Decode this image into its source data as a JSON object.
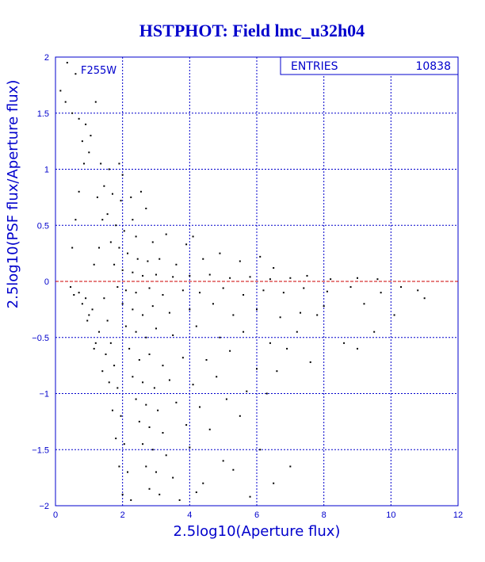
{
  "chart_data": {
    "type": "scatter",
    "title": "HSTPHOT: Field lmc_u32h04",
    "xlabel": "2.5log10(Aperture flux)",
    "ylabel": "2.5log10(PSF flux/Aperture flux)",
    "xlim": [
      0,
      12
    ],
    "ylim": [
      -2,
      2
    ],
    "x_ticks": [
      "0",
      "2",
      "4",
      "6",
      "8",
      "10",
      "12"
    ],
    "y_ticks": [
      "-2",
      "-1.5",
      "-1",
      "-0.5",
      "0",
      "0.5",
      "1",
      "1.5",
      "2"
    ],
    "grid": true,
    "filter_label": "F255W",
    "stats_box": {
      "label": "ENTRIES",
      "value": "10838"
    },
    "reference_line": {
      "y": 0,
      "color": "#cc0000"
    },
    "colors": {
      "axis": "#0000cc",
      "points": "#000000",
      "reference": "#cc0000"
    },
    "series": [
      {
        "values": [
          [
            0.35,
            1.95
          ],
          [
            0.6,
            1.85
          ],
          [
            0.15,
            1.7
          ],
          [
            0.3,
            1.6
          ],
          [
            0.5,
            1.5
          ],
          [
            0.7,
            1.45
          ],
          [
            0.9,
            1.4
          ],
          [
            1.2,
            1.6
          ],
          [
            0.8,
            1.25
          ],
          [
            1.05,
            1.3
          ],
          [
            1.35,
            1.05
          ],
          [
            1.6,
            1.0
          ],
          [
            1.9,
            1.05
          ],
          [
            2.0,
            0.95
          ],
          [
            1.45,
            0.85
          ],
          [
            1.7,
            0.78
          ],
          [
            1.95,
            0.72
          ],
          [
            2.25,
            0.75
          ],
          [
            2.55,
            0.8
          ],
          [
            2.7,
            0.65
          ],
          [
            2.3,
            0.55
          ],
          [
            1.55,
            0.6
          ],
          [
            1.8,
            0.5
          ],
          [
            2.05,
            0.45
          ],
          [
            2.4,
            0.4
          ],
          [
            2.9,
            0.35
          ],
          [
            3.3,
            0.42
          ],
          [
            3.9,
            0.33
          ],
          [
            4.1,
            0.4
          ],
          [
            1.65,
            0.35
          ],
          [
            1.9,
            0.3
          ],
          [
            2.15,
            0.25
          ],
          [
            2.45,
            0.2
          ],
          [
            2.75,
            0.18
          ],
          [
            3.1,
            0.2
          ],
          [
            3.6,
            0.15
          ],
          [
            4.4,
            0.2
          ],
          [
            4.9,
            0.25
          ],
          [
            5.5,
            0.18
          ],
          [
            6.1,
            0.22
          ],
          [
            6.5,
            0.12
          ],
          [
            1.75,
            0.15
          ],
          [
            2.0,
            0.1
          ],
          [
            2.3,
            0.08
          ],
          [
            2.6,
            0.05
          ],
          [
            3.0,
            0.06
          ],
          [
            3.5,
            0.04
          ],
          [
            4.0,
            0.05
          ],
          [
            4.6,
            0.06
          ],
          [
            5.2,
            0.03
          ],
          [
            5.8,
            0.04
          ],
          [
            6.4,
            0.02
          ],
          [
            7.0,
            0.03
          ],
          [
            7.5,
            0.05
          ],
          [
            8.2,
            0.02
          ],
          [
            9.0,
            0.03
          ],
          [
            9.6,
            0.02
          ],
          [
            1.85,
            -0.05
          ],
          [
            2.1,
            -0.08
          ],
          [
            2.4,
            -0.1
          ],
          [
            2.8,
            -0.06
          ],
          [
            3.2,
            -0.12
          ],
          [
            3.8,
            -0.08
          ],
          [
            4.3,
            -0.1
          ],
          [
            5.0,
            -0.06
          ],
          [
            5.6,
            -0.12
          ],
          [
            6.2,
            -0.08
          ],
          [
            6.8,
            -0.1
          ],
          [
            7.4,
            -0.06
          ],
          [
            8.1,
            -0.09
          ],
          [
            8.8,
            -0.05
          ],
          [
            10.3,
            -0.05
          ],
          [
            10.8,
            -0.08
          ],
          [
            2.0,
            -0.2
          ],
          [
            2.3,
            -0.25
          ],
          [
            2.6,
            -0.3
          ],
          [
            2.9,
            -0.22
          ],
          [
            3.4,
            -0.28
          ],
          [
            4.0,
            -0.25
          ],
          [
            4.7,
            -0.2
          ],
          [
            5.3,
            -0.3
          ],
          [
            6.0,
            -0.25
          ],
          [
            6.7,
            -0.32
          ],
          [
            7.3,
            -0.28
          ],
          [
            8.0,
            -0.22
          ],
          [
            9.2,
            -0.2
          ],
          [
            9.7,
            -0.1
          ],
          [
            2.1,
            -0.4
          ],
          [
            2.4,
            -0.45
          ],
          [
            2.7,
            -0.5
          ],
          [
            3.0,
            -0.42
          ],
          [
            3.5,
            -0.48
          ],
          [
            4.2,
            -0.4
          ],
          [
            4.9,
            -0.5
          ],
          [
            5.6,
            -0.45
          ],
          [
            6.4,
            -0.55
          ],
          [
            7.2,
            -0.45
          ],
          [
            7.8,
            -0.3
          ],
          [
            8.6,
            -0.55
          ],
          [
            9.5,
            -0.45
          ],
          [
            2.2,
            -0.6
          ],
          [
            2.5,
            -0.7
          ],
          [
            2.8,
            -0.65
          ],
          [
            3.2,
            -0.75
          ],
          [
            3.8,
            -0.68
          ],
          [
            4.5,
            -0.7
          ],
          [
            5.2,
            -0.62
          ],
          [
            6.0,
            -0.78
          ],
          [
            6.9,
            -0.6
          ],
          [
            7.6,
            -0.72
          ],
          [
            9.0,
            -0.6
          ],
          [
            2.3,
            -0.85
          ],
          [
            2.6,
            -0.9
          ],
          [
            2.95,
            -0.95
          ],
          [
            3.4,
            -0.88
          ],
          [
            4.1,
            -0.92
          ],
          [
            4.8,
            -0.85
          ],
          [
            5.7,
            -0.98
          ],
          [
            6.6,
            -0.8
          ],
          [
            2.4,
            -1.05
          ],
          [
            2.7,
            -1.1
          ],
          [
            3.05,
            -1.15
          ],
          [
            3.6,
            -1.08
          ],
          [
            4.3,
            -1.12
          ],
          [
            5.1,
            -1.05
          ],
          [
            6.3,
            -1.0
          ],
          [
            2.5,
            -1.25
          ],
          [
            2.8,
            -1.3
          ],
          [
            3.2,
            -1.35
          ],
          [
            3.9,
            -1.28
          ],
          [
            4.6,
            -1.32
          ],
          [
            5.5,
            -1.2
          ],
          [
            2.6,
            -1.45
          ],
          [
            2.9,
            -1.5
          ],
          [
            3.3,
            -1.55
          ],
          [
            4.0,
            -1.48
          ],
          [
            5.0,
            -1.6
          ],
          [
            6.1,
            -1.5
          ],
          [
            2.7,
            -1.65
          ],
          [
            3.0,
            -1.7
          ],
          [
            3.5,
            -1.75
          ],
          [
            4.4,
            -1.8
          ],
          [
            5.3,
            -1.68
          ],
          [
            2.8,
            -1.85
          ],
          [
            3.1,
            -1.9
          ],
          [
            3.7,
            -1.95
          ],
          [
            4.2,
            -1.88
          ],
          [
            5.8,
            -1.92
          ],
          [
            6.5,
            -1.8
          ],
          [
            7.0,
            -1.65
          ],
          [
            1.1,
            -0.25
          ],
          [
            1.3,
            -0.45
          ],
          [
            1.5,
            -0.65
          ],
          [
            1.6,
            -0.9
          ],
          [
            1.7,
            -1.15
          ],
          [
            1.8,
            -1.4
          ],
          [
            1.9,
            -1.65
          ],
          [
            2.0,
            -1.9
          ],
          [
            0.9,
            -0.15
          ],
          [
            1.0,
            -0.3
          ],
          [
            1.2,
            -0.55
          ],
          [
            1.4,
            -0.8
          ],
          [
            0.7,
            -0.1
          ],
          [
            0.8,
            -0.2
          ],
          [
            0.95,
            -0.35
          ],
          [
            1.15,
            -0.6
          ],
          [
            0.5,
            0.3
          ],
          [
            0.6,
            0.55
          ],
          [
            0.7,
            0.8
          ],
          [
            0.85,
            1.05
          ],
          [
            1.0,
            1.15
          ],
          [
            1.25,
            0.75
          ],
          [
            1.4,
            0.55
          ],
          [
            1.3,
            0.3
          ],
          [
            1.15,
            0.15
          ],
          [
            0.45,
            -0.05
          ],
          [
            0.55,
            -0.12
          ],
          [
            1.45,
            -0.15
          ],
          [
            1.55,
            -0.35
          ],
          [
            1.65,
            -0.55
          ],
          [
            1.75,
            -0.75
          ],
          [
            1.85,
            -0.95
          ],
          [
            1.95,
            -1.2
          ],
          [
            2.05,
            -1.45
          ],
          [
            2.15,
            -1.7
          ],
          [
            2.25,
            -1.95
          ],
          [
            10.1,
            -0.3
          ],
          [
            11.0,
            -0.15
          ]
        ]
      }
    ]
  }
}
